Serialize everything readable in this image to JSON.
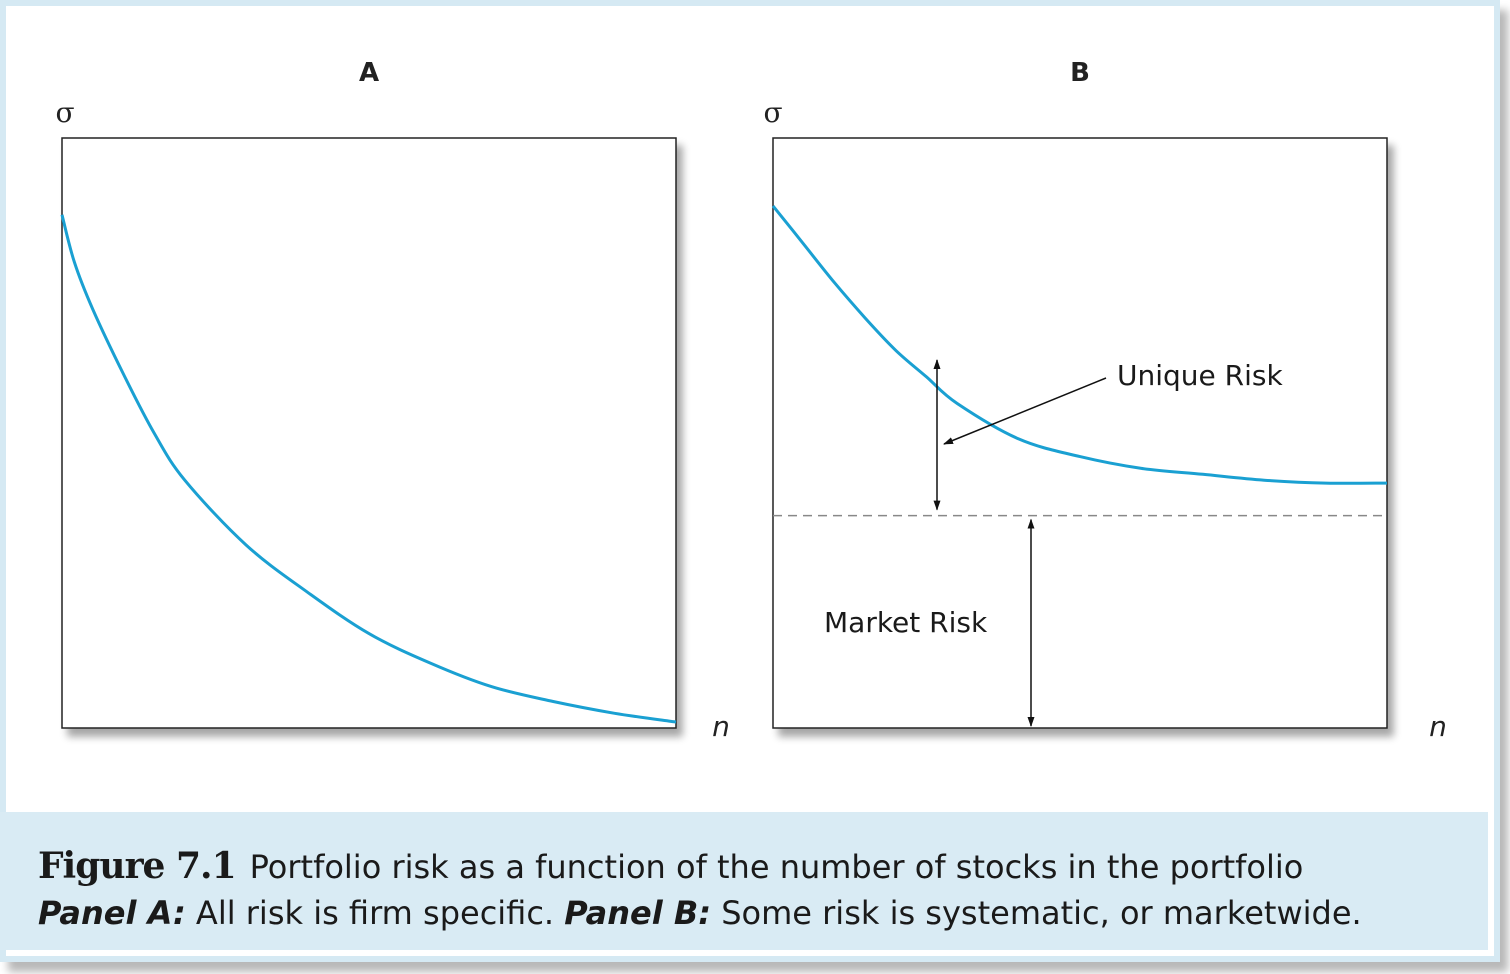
{
  "chart_data": [
    {
      "type": "line",
      "panel_title": "A",
      "ylabel": "σ",
      "xlabel": "n",
      "series": [
        {
          "color": "#1aa0d2",
          "x": [
            0,
            0.02,
            0.05,
            0.1,
            0.15,
            0.2,
            0.3,
            0.4,
            0.5,
            0.6,
            0.7,
            0.8,
            0.9,
            1.0
          ],
          "y": [
            0.87,
            0.79,
            0.71,
            0.6,
            0.5,
            0.42,
            0.31,
            0.23,
            0.16,
            0.11,
            0.07,
            0.045,
            0.025,
            0.01
          ]
        }
      ],
      "xlim": [
        0,
        1
      ],
      "ylim": [
        0,
        1
      ],
      "grid": false
    },
    {
      "type": "line",
      "panel_title": "B",
      "ylabel": "σ",
      "xlabel": "n",
      "series": [
        {
          "color": "#1aa0d2",
          "x": [
            0,
            0.05,
            0.1,
            0.15,
            0.2,
            0.25,
            0.3,
            0.4,
            0.5,
            0.6,
            0.7,
            0.8,
            0.9,
            1.0
          ],
          "y": [
            0.885,
            0.82,
            0.755,
            0.695,
            0.64,
            0.595,
            0.55,
            0.49,
            0.46,
            0.44,
            0.43,
            0.42,
            0.415,
            0.415
          ]
        }
      ],
      "market_risk_level": 0.36,
      "annotations": {
        "unique_risk": "Unique Risk",
        "market_risk": "Market Risk"
      },
      "xlim": [
        0,
        1
      ],
      "ylim": [
        0,
        1
      ],
      "grid": false
    }
  ],
  "caption": {
    "figure_number": "Figure 7.1",
    "title": "Portfolio risk as a function of the number of stocks in the portfolio",
    "panel_a_label": "Panel A:",
    "panel_a_text": " All risk is firm specific. ",
    "panel_b_label": "Panel B:",
    "panel_b_text": " Some risk is systematic, or marketwide."
  },
  "colors": {
    "curve": "#1aa0d2",
    "caption_background": "#d9ebf4",
    "frame_border": "#d5e9f3"
  }
}
